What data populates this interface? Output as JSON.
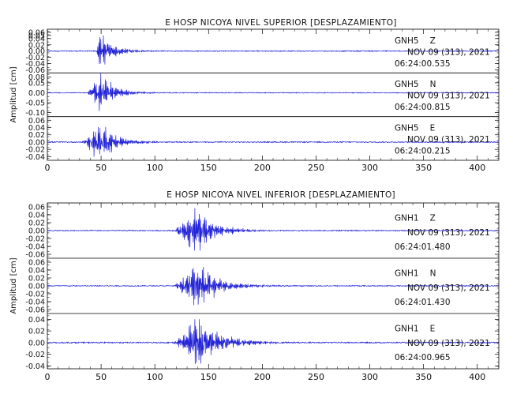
{
  "chart_data": [
    {
      "type": "line",
      "title": "E HOSP NICOYA NIVEL SUPERIOR [DESPLAZAMIENTO]",
      "ylabel": "Amplitud [cm]",
      "xlim": [
        0,
        420
      ],
      "xticks": [
        "0",
        "50",
        "100",
        "150",
        "200",
        "250",
        "300",
        "350",
        "400"
      ],
      "line_color": "#2323d8",
      "traces": [
        {
          "station": "GNH5",
          "component": "Z",
          "date": "NOV 09 (313), 2021",
          "time": "06:24:00.535",
          "ylim": [
            -0.07,
            0.07
          ],
          "yticks": [
            "0.06",
            "0.05",
            "0.04",
            "0.02",
            "0.00",
            "-0.02",
            "-0.04",
            "-0.06"
          ],
          "onset_s": 45,
          "peak_s": 49,
          "peak_amp": 0.058,
          "decay_s": 12,
          "noise_amp": 0.0015
        },
        {
          "station": "GNH5",
          "component": "N",
          "date": "NOV 09 (313), 2021",
          "time": "06:24:00.815",
          "ylim": [
            -0.12,
            0.1
          ],
          "yticks": [
            "0.08",
            "0.05",
            "0.00",
            "-0.05",
            "-0.10"
          ],
          "onset_s": 35,
          "peak_s": 49,
          "peak_amp": 0.09,
          "decay_s": 13,
          "noise_amp": 0.002
        },
        {
          "station": "GNH5",
          "component": "E",
          "date": "NOV 09 (313), 2021",
          "time": "06:24:00.215",
          "ylim": [
            -0.05,
            0.07
          ],
          "yticks": [
            "0.06",
            "0.04",
            "0.02",
            "0.00",
            "-0.02",
            "-0.04"
          ],
          "onset_s": 30,
          "peak_s": 48,
          "peak_amp": 0.05,
          "decay_s": 15,
          "noise_amp": 0.0015
        }
      ]
    },
    {
      "type": "line",
      "title": "E HOSP NICOYA NIVEL INFERIOR [DESPLAZAMIENTO]",
      "ylabel": "Amplitud [cm]",
      "xlim": [
        0,
        420
      ],
      "xticks": [
        "0",
        "50",
        "100",
        "150",
        "200",
        "250",
        "300",
        "350",
        "400"
      ],
      "line_color": "#2323d8",
      "traces": [
        {
          "station": "GNH1",
          "component": "Z",
          "date": "NOV 09 (313), 2021",
          "time": "06:24:01.480",
          "ylim": [
            -0.07,
            0.07
          ],
          "yticks": [
            "0.06",
            "0.04",
            "0.02",
            "0.00",
            "-0.02",
            "-0.04",
            "-0.06"
          ],
          "onset_s": 115,
          "peak_s": 138,
          "peak_amp": 0.06,
          "decay_s": 16,
          "noise_amp": 0.0012
        },
        {
          "station": "GNH1",
          "component": "N",
          "date": "NOV 09 (313), 2021",
          "time": "06:24:01.430",
          "ylim": [
            -0.07,
            0.07
          ],
          "yticks": [
            "0.06",
            "0.04",
            "0.02",
            "0.00",
            "-0.02",
            "-0.04",
            "-0.06"
          ],
          "onset_s": 115,
          "peak_s": 138,
          "peak_amp": 0.06,
          "decay_s": 18,
          "noise_amp": 0.0012
        },
        {
          "station": "GNH1",
          "component": "E",
          "date": "NOV 09 (313), 2021",
          "time": "06:24:00.965",
          "ylim": [
            -0.045,
            0.05
          ],
          "yticks": [
            "0.04",
            "0.02",
            "0.00",
            "-0.02",
            "-0.04"
          ],
          "onset_s": 115,
          "peak_s": 138,
          "peak_amp": 0.04,
          "decay_s": 22,
          "noise_amp": 0.001
        }
      ]
    }
  ]
}
